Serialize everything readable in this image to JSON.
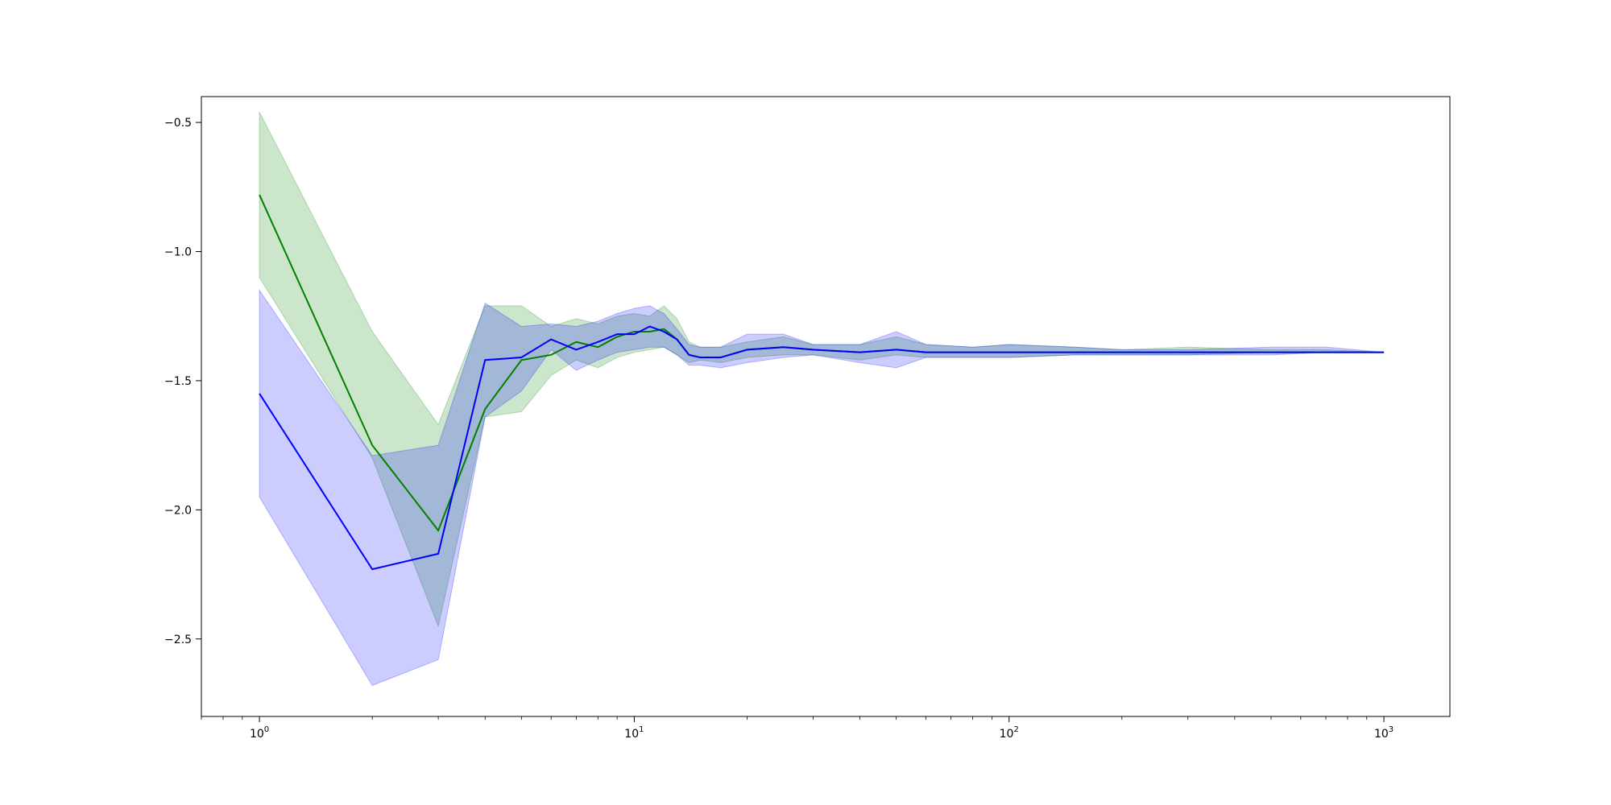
{
  "chart_data": {
    "type": "line",
    "title": "",
    "xlabel": "",
    "ylabel": "",
    "xscale": "log",
    "xlim": [
      0.7,
      1500
    ],
    "ylim": [
      -2.8,
      -0.4
    ],
    "grid": false,
    "legend": "none",
    "x_ticks": [
      {
        "value": 1,
        "base": "10",
        "exp": "0"
      },
      {
        "value": 10,
        "base": "10",
        "exp": "1"
      },
      {
        "value": 100,
        "base": "10",
        "exp": "2"
      },
      {
        "value": 1000,
        "base": "10",
        "exp": "3"
      }
    ],
    "y_ticks": [
      {
        "value": -0.5,
        "label": "−0.5"
      },
      {
        "value": -1.0,
        "label": "−1.0"
      },
      {
        "value": -1.5,
        "label": "−1.5"
      },
      {
        "value": -2.0,
        "label": "−2.0"
      },
      {
        "value": -2.5,
        "label": "−2.5"
      }
    ],
    "series": [
      {
        "color": "#008000",
        "band_color": "#008000",
        "x": [
          1,
          2,
          3,
          4,
          5,
          6,
          7,
          8,
          9,
          10,
          11,
          12,
          13,
          14,
          15,
          17,
          20,
          25,
          30,
          40,
          50,
          60,
          80,
          100,
          150,
          200,
          300,
          500,
          700,
          1000
        ],
        "y": [
          -0.78,
          -1.75,
          -2.08,
          -1.61,
          -1.42,
          -1.4,
          -1.35,
          -1.37,
          -1.33,
          -1.31,
          -1.31,
          -1.3,
          -1.34,
          -1.4,
          -1.41,
          -1.41,
          -1.38,
          -1.37,
          -1.38,
          -1.39,
          -1.38,
          -1.39,
          -1.39,
          -1.39,
          -1.39,
          -1.39,
          -1.39,
          -1.39,
          -1.39,
          -1.39
        ],
        "lower": [
          -1.1,
          -1.8,
          -2.45,
          -1.64,
          -1.62,
          -1.48,
          -1.42,
          -1.45,
          -1.41,
          -1.39,
          -1.38,
          -1.37,
          -1.4,
          -1.43,
          -1.42,
          -1.43,
          -1.41,
          -1.4,
          -1.4,
          -1.42,
          -1.4,
          -1.41,
          -1.41,
          -1.41,
          -1.4,
          -1.4,
          -1.4,
          -1.39,
          -1.39,
          -1.39
        ],
        "upper": [
          -0.46,
          -1.31,
          -1.67,
          -1.21,
          -1.21,
          -1.29,
          -1.26,
          -1.28,
          -1.25,
          -1.24,
          -1.25,
          -1.21,
          -1.26,
          -1.35,
          -1.37,
          -1.37,
          -1.35,
          -1.33,
          -1.36,
          -1.36,
          -1.33,
          -1.36,
          -1.37,
          -1.36,
          -1.37,
          -1.38,
          -1.37,
          -1.38,
          -1.38,
          -1.39
        ]
      },
      {
        "color": "#0000ff",
        "band_color": "#0000ff",
        "x": [
          1,
          2,
          3,
          4,
          5,
          6,
          7,
          8,
          9,
          10,
          11,
          12,
          13,
          14,
          15,
          17,
          20,
          25,
          30,
          40,
          50,
          60,
          80,
          100,
          150,
          200,
          300,
          500,
          700,
          1000
        ],
        "y": [
          -1.55,
          -2.23,
          -2.17,
          -1.42,
          -1.41,
          -1.34,
          -1.38,
          -1.35,
          -1.32,
          -1.32,
          -1.29,
          -1.31,
          -1.34,
          -1.4,
          -1.41,
          -1.41,
          -1.38,
          -1.37,
          -1.38,
          -1.39,
          -1.38,
          -1.39,
          -1.39,
          -1.39,
          -1.39,
          -1.39,
          -1.39,
          -1.39,
          -1.39,
          -1.39
        ],
        "lower": [
          -1.95,
          -2.68,
          -2.58,
          -1.64,
          -1.54,
          -1.38,
          -1.46,
          -1.42,
          -1.39,
          -1.38,
          -1.37,
          -1.37,
          -1.4,
          -1.44,
          -1.44,
          -1.45,
          -1.43,
          -1.41,
          -1.4,
          -1.43,
          -1.45,
          -1.41,
          -1.41,
          -1.41,
          -1.4,
          -1.4,
          -1.4,
          -1.4,
          -1.39,
          -1.39
        ],
        "upper": [
          -1.15,
          -1.79,
          -1.75,
          -1.2,
          -1.29,
          -1.28,
          -1.29,
          -1.27,
          -1.24,
          -1.22,
          -1.21,
          -1.24,
          -1.3,
          -1.36,
          -1.37,
          -1.37,
          -1.32,
          -1.32,
          -1.36,
          -1.36,
          -1.31,
          -1.36,
          -1.37,
          -1.36,
          -1.37,
          -1.38,
          -1.38,
          -1.37,
          -1.37,
          -1.39
        ]
      }
    ]
  }
}
